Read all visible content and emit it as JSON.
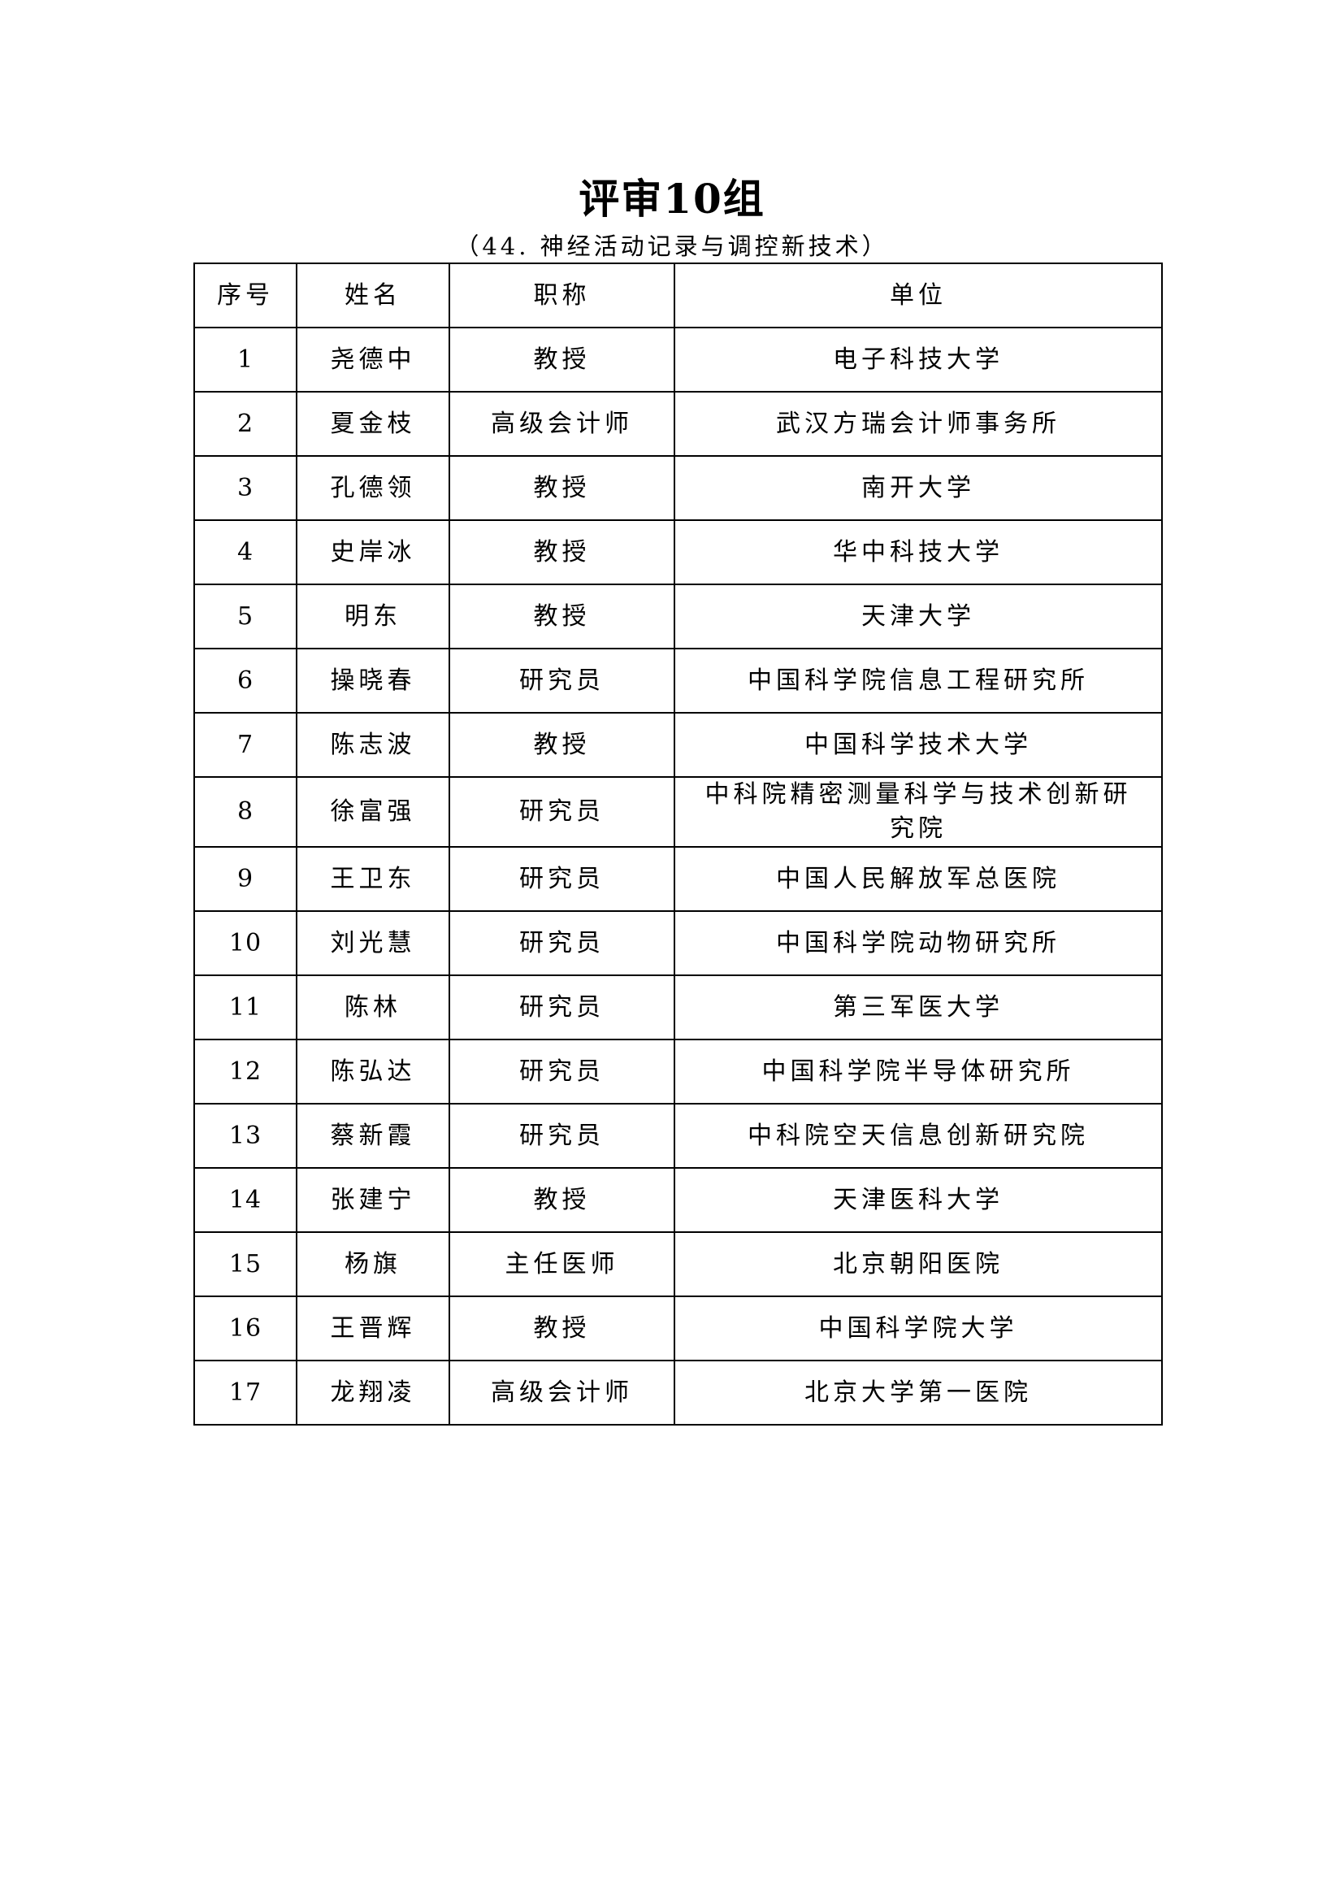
{
  "title": "评审10组",
  "subtitle": "（44.  神经活动记录与调控新技术）",
  "table": {
    "headers": [
      "序号",
      "姓名",
      "职称",
      "单位"
    ],
    "rows": [
      [
        "1",
        "尧德中",
        "教授",
        "电子科技大学"
      ],
      [
        "2",
        "夏金枝",
        "高级会计师",
        "武汉方瑞会计师事务所"
      ],
      [
        "3",
        "孔德领",
        "教授",
        "南开大学"
      ],
      [
        "4",
        "史岸冰",
        "教授",
        "华中科技大学"
      ],
      [
        "5",
        "明东",
        "教授",
        "天津大学"
      ],
      [
        "6",
        "操晓春",
        "研究员",
        "中国科学院信息工程研究所"
      ],
      [
        "7",
        "陈志波",
        "教授",
        "中国科学技术大学"
      ],
      [
        "8",
        "徐富强",
        "研究员",
        "中科院精密测量科学与技术创新研究院"
      ],
      [
        "9",
        "王卫东",
        "研究员",
        "中国人民解放军总医院"
      ],
      [
        "10",
        "刘光慧",
        "研究员",
        "中国科学院动物研究所"
      ],
      [
        "11",
        "陈林",
        "研究员",
        "第三军医大学"
      ],
      [
        "12",
        "陈弘达",
        "研究员",
        "中国科学院半导体研究所"
      ],
      [
        "13",
        "蔡新霞",
        "研究员",
        "中科院空天信息创新研究院"
      ],
      [
        "14",
        "张建宁",
        "教授",
        "天津医科大学"
      ],
      [
        "15",
        "杨旗",
        "主任医师",
        "北京朝阳医院"
      ],
      [
        "16",
        "王晋辉",
        "教授",
        "中国科学院大学"
      ],
      [
        "17",
        "龙翔凌",
        "高级会计师",
        "北京大学第一医院"
      ]
    ]
  }
}
